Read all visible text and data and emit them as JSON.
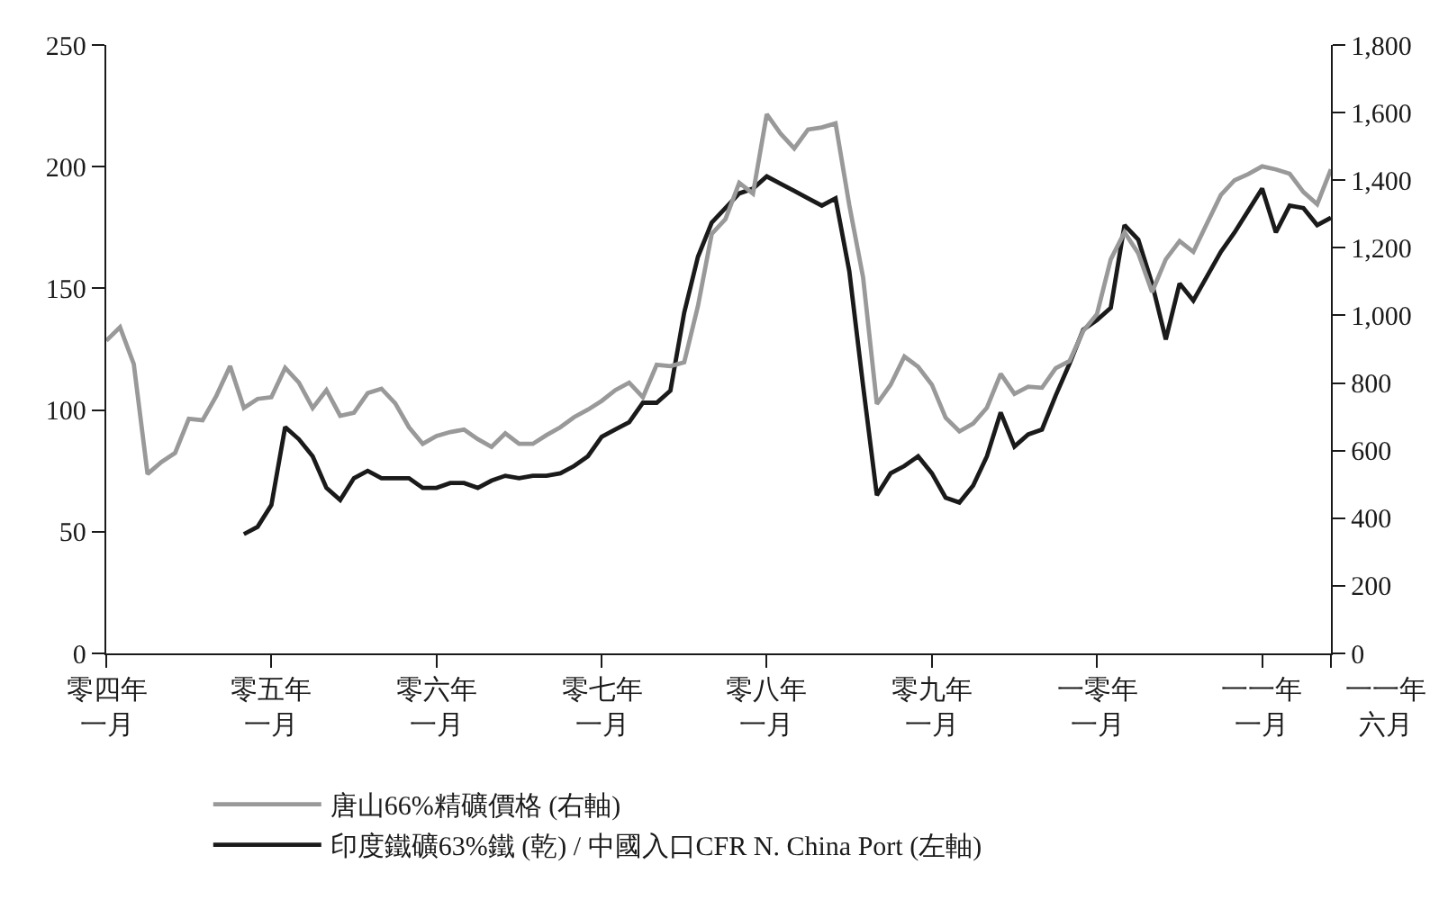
{
  "chart_data": {
    "type": "line",
    "categories": [
      "零四年一月",
      null,
      null,
      null,
      null,
      null,
      null,
      null,
      null,
      null,
      null,
      null,
      "零五年一月",
      null,
      null,
      null,
      null,
      null,
      null,
      null,
      null,
      null,
      null,
      null,
      "零六年一月",
      null,
      null,
      null,
      null,
      null,
      null,
      null,
      null,
      null,
      null,
      null,
      "零七年一月",
      null,
      null,
      null,
      null,
      null,
      null,
      null,
      null,
      null,
      null,
      null,
      "零八年一月",
      null,
      null,
      null,
      null,
      null,
      null,
      null,
      null,
      null,
      null,
      null,
      "零九年一月",
      null,
      null,
      null,
      null,
      null,
      null,
      null,
      null,
      null,
      null,
      null,
      "一零年一月",
      null,
      null,
      null,
      null,
      null,
      null,
      null,
      null,
      null,
      null,
      null,
      "一一年一月",
      null,
      null,
      null,
      null,
      null
    ],
    "annotations": [
      "一一年六月"
    ],
    "ylim": [
      0,
      250
    ],
    "yticks": [
      0,
      50,
      100,
      150,
      200,
      250
    ],
    "y2lim": [
      0,
      1800
    ],
    "y2ticks": [
      0,
      200,
      400,
      600,
      800,
      {
        "value": 1000,
        "label": "1,000"
      },
      {
        "value": 1200,
        "label": "1,200"
      },
      {
        "value": 1400,
        "label": "1,400"
      },
      {
        "value": 1600,
        "label": "1,600"
      },
      {
        "value": 1800,
        "label": "1,800"
      }
    ],
    "grid": false,
    "legend": "bottom",
    "marker": "none",
    "line_style": "solid",
    "series": [
      {
        "name": "唐山66%精礦價格 (右軸)",
        "color": "#999999",
        "axis": "y2",
        "values": [
          925,
          965,
          856,
          531,
          566,
          593,
          694,
          690,
          762,
          850,
          726,
          753,
          758,
          845,
          801,
          726,
          779,
          703,
          712,
          770,
          783,
          740,
          669,
          620,
          643,
          655,
          662,
          634,
          611,
          651,
          620,
          620,
          646,
          669,
          699,
          721,
          747,
          779,
          801,
          758,
          854,
          850,
          861,
          1028,
          1241,
          1285,
          1392,
          1360,
          1595,
          1538,
          1494,
          1550,
          1556,
          1568,
          1326,
          1113,
          738,
          795,
          878,
          848,
          795,
          697,
          657,
          680,
          727,
          827,
          768,
          789,
          786,
          844,
          865,
          954,
          1004,
          1166,
          1246,
          1184,
          1069,
          1166,
          1220,
          1188,
          1273,
          1356,
          1400,
          1418,
          1441,
          1432,
          1419,
          1365,
          1329,
          1432
        ]
      },
      {
        "name": "印度鐵礦63%鐵 (乾) / 中國入口CFR N. China Port (左軸)",
        "color": "#1a1a1a",
        "axis": "y",
        "values": [
          null,
          null,
          null,
          null,
          null,
          null,
          null,
          null,
          null,
          null,
          49,
          52,
          61,
          93,
          88,
          81,
          68,
          63,
          72,
          75,
          72,
          72,
          72,
          68,
          68,
          70,
          70,
          68,
          71,
          73,
          72,
          73,
          73,
          74,
          77,
          81,
          89,
          92,
          95,
          103,
          103,
          108,
          140,
          163,
          177,
          183,
          189,
          191,
          196,
          193,
          190,
          187,
          184,
          187,
          157,
          110,
          65,
          74,
          77,
          81,
          74,
          64,
          62,
          69,
          81,
          99,
          85,
          90,
          92,
          106,
          119,
          133,
          137,
          142,
          176,
          170,
          152,
          129,
          152,
          145,
          155,
          165,
          173,
          182,
          191,
          173,
          184,
          183,
          176,
          179
        ]
      }
    ]
  }
}
